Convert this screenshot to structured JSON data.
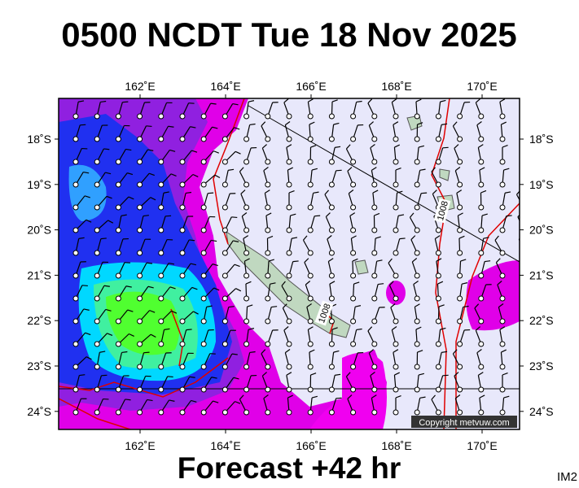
{
  "header": {
    "title": "0500 NCDT Tue 18 Nov 2025"
  },
  "map": {
    "lon_labels": [
      "162˚E",
      "164˚E",
      "166˚E",
      "168˚E",
      "170˚E"
    ],
    "lat_labels": [
      "18˚S",
      "19˚S",
      "20˚S",
      "21˚S",
      "22˚S",
      "23˚S",
      "24˚S"
    ],
    "isobar_labels": [
      "1008",
      "1008"
    ],
    "copyright": "Copyright metvuw.com"
  },
  "footer": {
    "forecast": "Forecast +42 hr",
    "code": "IM2"
  }
}
